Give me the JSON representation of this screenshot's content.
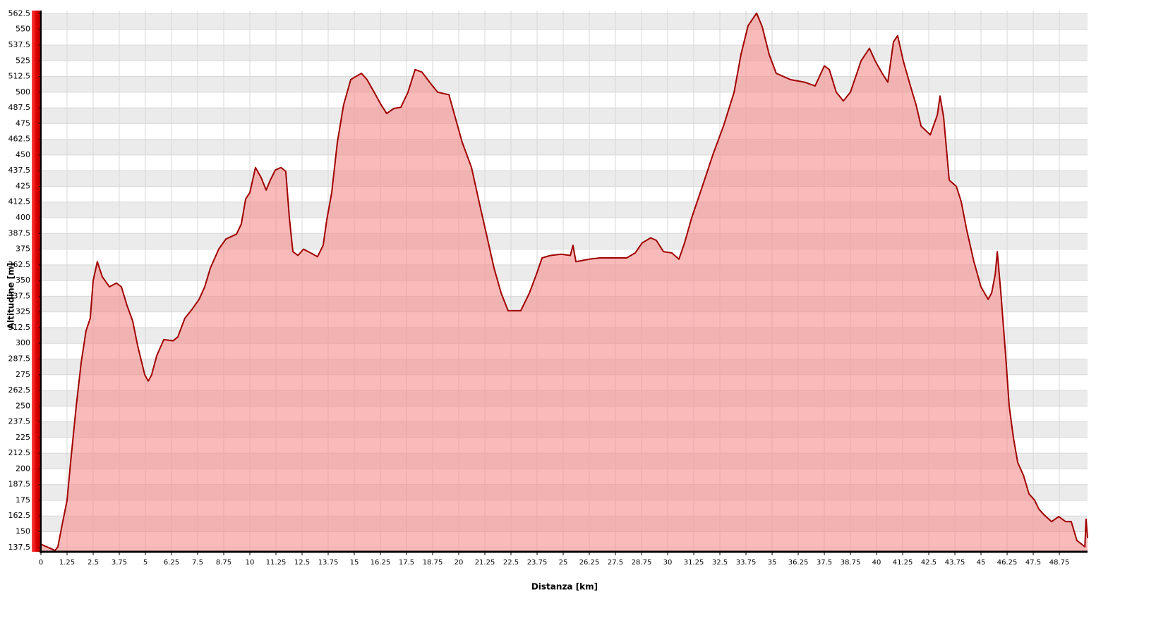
{
  "chart_data": {
    "type": "area",
    "xlabel": "Distanza [km]",
    "ylabel": "Altitudine [m]",
    "color": "#a00000",
    "fill": "#f58c8c",
    "grid": true,
    "xlim": [
      0,
      50.1
    ],
    "ylim": [
      134,
      565
    ],
    "xticks": [
      0,
      1.25,
      2.5,
      3.75,
      5,
      6.25,
      7.5,
      8.75,
      10,
      11.25,
      12.5,
      13.75,
      15,
      16.25,
      17.5,
      18.75,
      20,
      21.25,
      22.5,
      23.75,
      25,
      26.25,
      27.5,
      28.75,
      30,
      31.25,
      32.5,
      33.75,
      35,
      36.25,
      37.5,
      38.75,
      40,
      41.25,
      42.5,
      43.75,
      45,
      46.25,
      47.5,
      48.75
    ],
    "yticks": [
      137.5,
      150,
      162.5,
      175,
      187.5,
      200,
      212.5,
      225,
      237.5,
      250,
      262.5,
      275,
      287.5,
      300,
      312.5,
      325,
      337.5,
      350,
      362.5,
      375,
      387.5,
      400,
      412.5,
      425,
      437.5,
      450,
      462.5,
      475,
      487.5,
      500,
      512.5,
      525,
      537.5,
      550,
      562.5
    ],
    "x": [
      0,
      0.41,
      0.68,
      0.81,
      1.01,
      1.25,
      1.42,
      1.69,
      1.93,
      2.16,
      2.36,
      2.5,
      2.7,
      2.94,
      3.28,
      3.61,
      3.85,
      4.12,
      4.39,
      4.63,
      4.97,
      5.14,
      5.3,
      5.54,
      5.88,
      6.32,
      6.55,
      6.89,
      7.23,
      7.57,
      7.84,
      8.11,
      8.51,
      8.85,
      9.36,
      9.59,
      9.8,
      10,
      10.27,
      10.54,
      10.78,
      10.98,
      11.22,
      11.49,
      11.72,
      11.89,
      12.06,
      12.3,
      12.57,
      12.91,
      13.24,
      13.51,
      13.68,
      13.92,
      14.19,
      14.49,
      14.83,
      15.03,
      15.34,
      15.61,
      15.95,
      16.28,
      16.55,
      16.89,
      17.23,
      17.57,
      17.91,
      18.24,
      18.65,
      18.99,
      19.53,
      19.83,
      20.17,
      20.61,
      21.01,
      21.35,
      21.69,
      22.03,
      22.36,
      22.97,
      23.38,
      23.72,
      23.99,
      24.39,
      24.9,
      25.34,
      25.47,
      25.61,
      25.91,
      26.25,
      26.76,
      27.43,
      28.04,
      28.45,
      28.78,
      29.19,
      29.46,
      29.8,
      30.2,
      30.54,
      30.81,
      31.15,
      31.66,
      32.16,
      32.67,
      33.18,
      33.51,
      33.85,
      34.26,
      34.53,
      34.86,
      35.2,
      35.88,
      36.55,
      37.06,
      37.5,
      37.74,
      38.07,
      38.41,
      38.75,
      39.26,
      39.66,
      39.93,
      40.27,
      40.54,
      40.81,
      41.01,
      41.28,
      41.62,
      41.89,
      42.13,
      42.57,
      42.91,
      43.04,
      43.21,
      43.48,
      43.82,
      44.05,
      44.32,
      44.66,
      45,
      45.34,
      45.51,
      45.68,
      45.78,
      45.95,
      46.18,
      46.35,
      46.55,
      46.76,
      47.03,
      47.3,
      47.57,
      47.77,
      48.04,
      48.38,
      48.72,
      49.05,
      49.32,
      49.59,
      49.82,
      49.97,
      50.03,
      50.1
    ],
    "values": [
      140,
      137,
      135,
      138,
      155,
      175,
      205,
      250,
      285,
      310,
      320,
      350,
      365,
      353,
      345,
      348,
      345,
      330,
      318,
      298,
      275,
      270,
      275,
      290,
      303,
      302,
      305,
      320,
      327,
      335,
      345,
      360,
      375,
      383,
      387,
      395,
      415,
      420,
      440,
      432,
      422,
      430,
      438,
      440,
      437,
      400,
      373,
      370,
      375,
      372,
      369,
      378,
      398,
      420,
      460,
      490,
      510,
      512,
      515,
      510,
      500,
      490,
      483,
      487,
      488,
      500,
      518,
      516,
      507,
      500,
      498,
      480,
      460,
      440,
      410,
      385,
      360,
      340,
      326,
      326,
      340,
      355,
      368,
      370,
      371,
      370,
      378,
      365,
      366,
      367,
      368,
      368,
      368,
      372,
      380,
      384,
      382,
      373,
      372,
      367,
      380,
      400,
      425,
      450,
      473,
      500,
      530,
      553,
      563,
      552,
      530,
      515,
      510,
      508,
      505,
      521,
      518,
      500,
      493,
      500,
      525,
      535,
      525,
      515,
      508,
      540,
      545,
      525,
      505,
      490,
      473,
      466,
      482,
      497,
      480,
      430,
      425,
      413,
      390,
      365,
      345,
      335,
      340,
      355,
      373,
      340,
      290,
      250,
      225,
      205,
      195,
      180,
      175,
      168,
      163,
      158,
      162,
      158,
      158,
      143,
      140,
      138,
      160,
      145
    ]
  }
}
